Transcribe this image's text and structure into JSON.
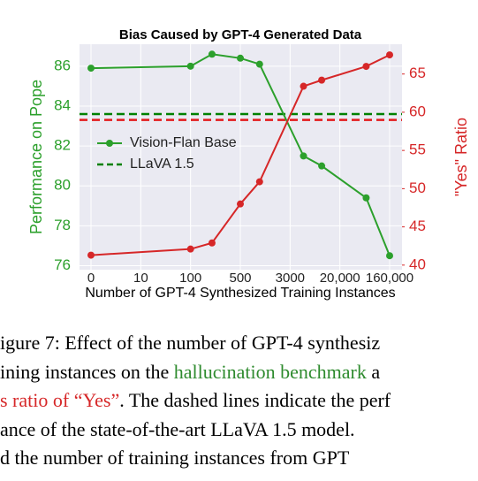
{
  "chart_data": {
    "type": "line",
    "title": "Bias Caused by GPT-4 Generated Data",
    "xlabel": "Number of GPT-4 Synthesized Training Instances",
    "ylabel": "Performance on Pope",
    "y2label": "\"Yes\" Ratio",
    "x": [
      0,
      100,
      200,
      500,
      1000,
      5000,
      10000,
      60000,
      160000
    ],
    "series": [
      {
        "name": "Vision-Flan Base",
        "color": "#2ca02c",
        "values": [
          85.9,
          86.0,
          86.6,
          86.4,
          86.1,
          81.5,
          81.0,
          79.4,
          76.5
        ]
      },
      {
        "color": "#d62728",
        "axis": "y2",
        "values": [
          41.3,
          42.1,
          42.9,
          48.0,
          50.9,
          63.4,
          64.2,
          66.0,
          67.5
        ]
      }
    ],
    "reference_lines": [
      {
        "name": "LLaVA 1.5",
        "value": 83.6,
        "color": "#008000"
      },
      {
        "value": 59.0,
        "axis": "y2",
        "color": "#e31a1c"
      }
    ],
    "xticks": [
      0,
      10,
      100,
      500,
      3000,
      {
        "value": 20000,
        "label": "20,000"
      },
      {
        "value": 160000,
        "label": "160,000"
      }
    ],
    "ylim": [
      75.8,
      87.1
    ],
    "yticks": [
      76,
      78,
      80,
      82,
      84,
      86
    ],
    "ycolor": "#2ca02c",
    "y2lim": [
      39.4,
      68.9
    ],
    "y2ticks": [
      40,
      45,
      50,
      55,
      60,
      65
    ],
    "y2color": "#d62728",
    "grid": true,
    "legend": "center left"
  },
  "caption": {
    "lines": [
      [
        {
          "text": "igure 7: Effect of the number of GPT-4 synthesiz"
        }
      ],
      [
        {
          "text": "ining instances on the "
        },
        {
          "text": "hallucination benchmark",
          "color": "#2e8b2e"
        },
        {
          "text": " a"
        }
      ],
      [
        {
          "text": "s ratio of “Yes”",
          "color": "#d62728"
        },
        {
          "text": ". The dashed lines indicate the perf"
        }
      ],
      [
        {
          "text": "ance of the state-of-the-art LLaVA 1.5 model."
        }
      ],
      [
        {
          "text": "d the number of training instances from GPT"
        }
      ]
    ]
  }
}
